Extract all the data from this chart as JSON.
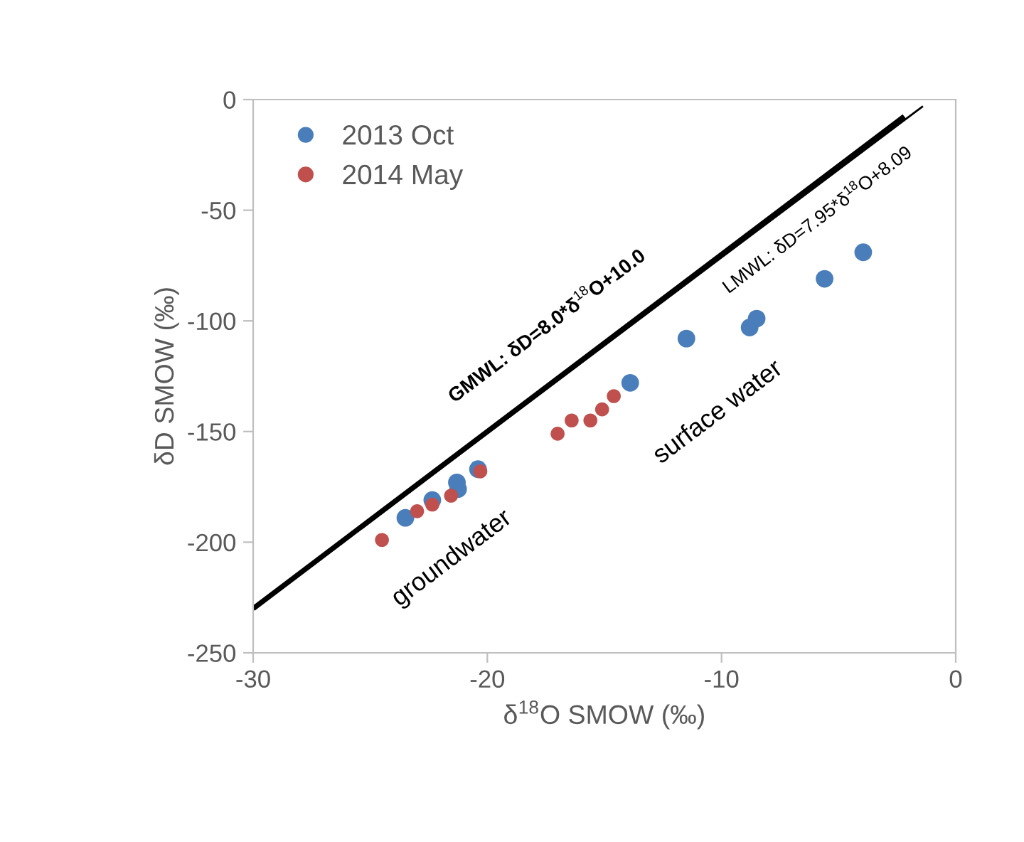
{
  "chart_data": {
    "type": "scatter",
    "xlabel": "δ$^{18}$O SMOW (‰)",
    "ylabel": "δD SMOW (‰)",
    "xlim": [
      -30,
      0
    ],
    "xticks": [
      -30,
      -20,
      -10,
      0
    ],
    "ylim": [
      -250,
      0
    ],
    "yticks": [
      -250,
      -200,
      -150,
      -100,
      -50,
      0
    ],
    "grid": false,
    "legend": "top left",
    "series": [
      {
        "name": "2013 Oct",
        "color": "#4a7ebb",
        "marker": "circle",
        "x": [
          -23.5,
          -22.35,
          -21.3,
          -21.25,
          -20.4,
          -13.9,
          -11.5,
          -8.8,
          -8.5,
          -5.6,
          -3.95
        ],
        "values": [
          -189,
          -181,
          -173,
          -176,
          -167,
          -128,
          -108,
          -103,
          -99,
          -81,
          -69
        ]
      },
      {
        "name": "2014 May",
        "color": "#c0504d",
        "marker": "circle",
        "x": [
          -24.5,
          -23.0,
          -22.35,
          -21.55,
          -20.3,
          -17.0,
          -16.4,
          -15.6,
          -15.1,
          -14.6
        ],
        "values": [
          -199,
          -186,
          -183,
          -179,
          -168,
          -151,
          -145,
          -145,
          -140,
          -134
        ]
      },
      {
        "type": "line",
        "color": "#000000",
        "marker": "none",
        "x": [
          -30,
          -2.2
        ],
        "values": [
          -230,
          -7.6
        ]
      },
      {
        "type": "line",
        "color": "#000000",
        "marker": "none",
        "x": [
          -30,
          -1.4
        ],
        "values": [
          -230.4,
          -3.0
        ]
      }
    ],
    "annotations": [
      "GMWL: δD=8.0*δ$^{18}$O+10.0",
      "LMWL: δD=7.95*δ$^{18}$O+8.09",
      "surface water",
      "groundwater"
    ]
  }
}
